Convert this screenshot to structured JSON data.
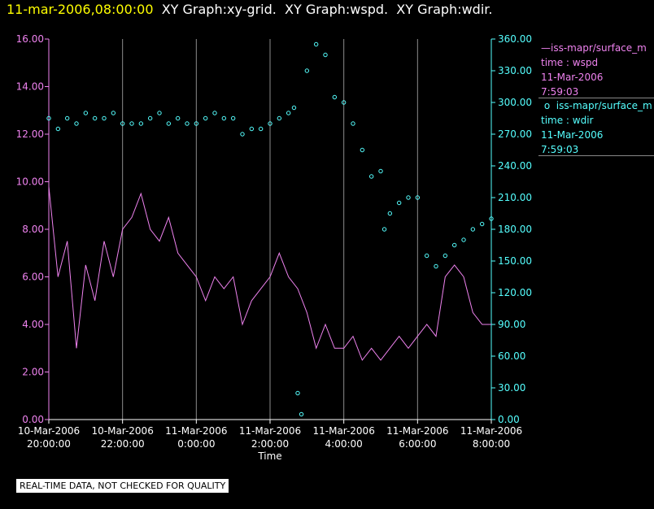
{
  "header": {
    "date": "11-mar-2006,08:00:00",
    "graphs": [
      "XY Graph:xy-grid.",
      "XY Graph:wspd.",
      "XY Graph:wdir."
    ]
  },
  "legend": {
    "wspd": {
      "series": "iss-mapr/surface_m",
      "line1": "time : wspd",
      "line2": "11-Mar-2006",
      "line3": "7:59:03"
    },
    "wdir": {
      "series": "iss-mapr/surface_m",
      "line1": "time : wdir",
      "line2": "11-Mar-2006",
      "line3": "7:59:03"
    }
  },
  "notice": "REAL-TIME DATA, NOT CHECKED FOR QUALITY",
  "chart_data": {
    "type": "line",
    "title": "",
    "xlabel": "Time",
    "x_unit": "hours since 10-Mar-2006 20:00:00",
    "xlim": [
      0,
      12
    ],
    "x_ticks": [
      {
        "x": 0,
        "date": "10-Mar-2006",
        "time": "20:00:00"
      },
      {
        "x": 2,
        "date": "10-Mar-2006",
        "time": "22:00:00"
      },
      {
        "x": 4,
        "date": "11-Mar-2006",
        "time": "0:00:00"
      },
      {
        "x": 6,
        "date": "11-Mar-2006",
        "time": "2:00:00"
      },
      {
        "x": 8,
        "date": "11-Mar-2006",
        "time": "4:00:00"
      },
      {
        "x": 10,
        "date": "11-Mar-2006",
        "time": "6:00:00"
      },
      {
        "x": 12,
        "date": "11-Mar-2006",
        "time": "8:00:00"
      }
    ],
    "left_axis": {
      "ylim": [
        0,
        16
      ],
      "ticks": [
        "0.00",
        "2.00",
        "4.00",
        "6.00",
        "8.00",
        "10.00",
        "12.00",
        "14.00",
        "16.00"
      ],
      "color": "#ee82ee"
    },
    "right_axis": {
      "ylim": [
        0,
        360
      ],
      "ticks": [
        "0.00",
        "30.00",
        "60.00",
        "90.00",
        "120.00",
        "150.00",
        "180.00",
        "210.00",
        "240.00",
        "270.00",
        "300.00",
        "330.00",
        "360.00"
      ],
      "color": "#55ffff"
    },
    "vertical_grid": true,
    "series": [
      {
        "name": "wspd",
        "axis": "left",
        "style": "line",
        "color": "#ee82ee",
        "x": [
          0,
          0.25,
          0.5,
          0.75,
          1,
          1.25,
          1.5,
          1.75,
          2,
          2.25,
          2.5,
          2.75,
          3,
          3.25,
          3.5,
          3.75,
          4,
          4.25,
          4.5,
          4.75,
          5,
          5.25,
          5.5,
          5.75,
          6,
          6.25,
          6.5,
          6.75,
          7,
          7.25,
          7.5,
          7.75,
          8,
          8.25,
          8.5,
          8.75,
          9,
          9.25,
          9.5,
          9.75,
          10,
          10.25,
          10.5,
          10.75,
          11,
          11.25,
          11.5,
          11.75,
          12
        ],
        "values": [
          9.8,
          6.0,
          7.5,
          3.0,
          6.5,
          5.0,
          7.5,
          6.0,
          8.0,
          8.5,
          9.5,
          8.0,
          7.5,
          8.5,
          7.0,
          6.5,
          6.0,
          5.0,
          6.0,
          5.5,
          6.0,
          4.0,
          5.0,
          5.5,
          6.0,
          7.0,
          6.0,
          5.5,
          4.5,
          3.0,
          4.0,
          3.0,
          3.0,
          3.5,
          2.5,
          3.0,
          2.5,
          3.0,
          3.5,
          3.0,
          3.5,
          4.0,
          3.5,
          6.0,
          6.5,
          6.0,
          4.5,
          4.0,
          4.0
        ]
      },
      {
        "name": "wdir",
        "axis": "right",
        "style": "points",
        "color": "#55ffff",
        "x": [
          0,
          0.25,
          0.5,
          0.75,
          1,
          1.25,
          1.5,
          1.75,
          2,
          2.25,
          2.5,
          2.75,
          3,
          3.25,
          3.5,
          3.75,
          4,
          4.25,
          4.5,
          4.75,
          5,
          5.25,
          5.5,
          5.75,
          6,
          6.25,
          6.5,
          6.65,
          6.75,
          6.85,
          7,
          7.25,
          7.5,
          7.75,
          8,
          8.25,
          8.5,
          8.75,
          9,
          9.1,
          9.25,
          9.5,
          9.75,
          10,
          10.25,
          10.5,
          10.75,
          11,
          11.25,
          11.5,
          11.75,
          12
        ],
        "values": [
          285,
          275,
          285,
          280,
          290,
          285,
          285,
          290,
          280,
          280,
          280,
          285,
          290,
          280,
          285,
          280,
          280,
          285,
          290,
          285,
          285,
          270,
          275,
          275,
          280,
          285,
          290,
          295,
          25,
          5,
          330,
          355,
          345,
          305,
          300,
          280,
          255,
          230,
          235,
          180,
          195,
          205,
          210,
          210,
          155,
          145,
          155,
          165,
          170,
          180,
          185,
          190
        ]
      }
    ]
  }
}
